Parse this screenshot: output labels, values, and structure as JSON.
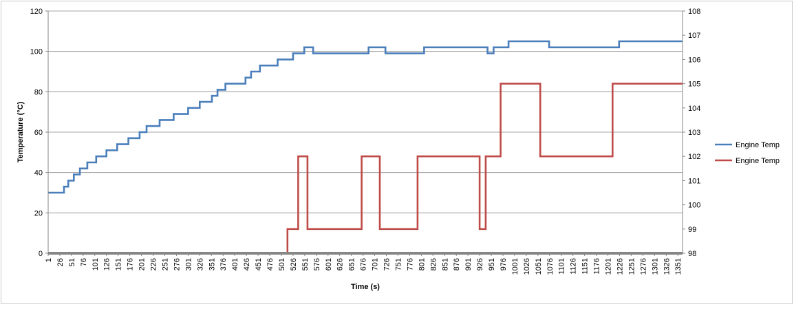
{
  "chart_data": {
    "type": "line",
    "xlabel": "Time (s)",
    "ylabel": "Temperature (°C)",
    "y2label": "",
    "x_ticks": [
      1,
      26,
      51,
      76,
      101,
      126,
      151,
      176,
      201,
      226,
      251,
      276,
      301,
      326,
      351,
      376,
      401,
      426,
      451,
      476,
      501,
      526,
      551,
      576,
      601,
      626,
      651,
      676,
      701,
      726,
      751,
      776,
      801,
      826,
      851,
      876,
      901,
      926,
      951,
      976,
      1001,
      1026,
      1051,
      1076,
      1101,
      1126,
      1151,
      1176,
      1201,
      1226,
      1251,
      1276,
      1301,
      1326,
      1351
    ],
    "xlim": [
      1,
      1361
    ],
    "ylim": [
      0,
      120
    ],
    "yticks": [
      0,
      20,
      40,
      60,
      80,
      100,
      120
    ],
    "y2lim": [
      98,
      108
    ],
    "y2ticks": [
      98,
      99,
      100,
      101,
      102,
      103,
      104,
      105,
      106,
      107,
      108
    ],
    "grid": true,
    "legend_position": "right",
    "series": [
      {
        "name": "Engine Temp",
        "axis": "left",
        "color": "#4a7ebb",
        "points": [
          [
            1,
            30
          ],
          [
            35,
            30
          ],
          [
            35,
            33
          ],
          [
            44,
            33
          ],
          [
            44,
            36
          ],
          [
            56,
            36
          ],
          [
            56,
            39
          ],
          [
            69,
            39
          ],
          [
            69,
            42
          ],
          [
            85,
            42
          ],
          [
            85,
            45
          ],
          [
            104,
            45
          ],
          [
            104,
            48
          ],
          [
            126,
            48
          ],
          [
            126,
            51
          ],
          [
            149,
            51
          ],
          [
            149,
            54
          ],
          [
            173,
            54
          ],
          [
            173,
            57
          ],
          [
            197,
            57
          ],
          [
            197,
            60
          ],
          [
            212,
            60
          ],
          [
            212,
            63
          ],
          [
            240,
            63
          ],
          [
            240,
            66
          ],
          [
            270,
            66
          ],
          [
            270,
            69
          ],
          [
            301,
            69
          ],
          [
            301,
            72
          ],
          [
            326,
            72
          ],
          [
            326,
            75
          ],
          [
            352,
            75
          ],
          [
            352,
            78
          ],
          [
            364,
            78
          ],
          [
            364,
            81
          ],
          [
            381,
            81
          ],
          [
            381,
            84
          ],
          [
            424,
            84
          ],
          [
            424,
            87
          ],
          [
            436,
            87
          ],
          [
            436,
            90
          ],
          [
            455,
            90
          ],
          [
            455,
            93
          ],
          [
            493,
            93
          ],
          [
            493,
            96
          ],
          [
            526,
            96
          ],
          [
            526,
            99
          ],
          [
            550,
            99
          ],
          [
            550,
            102
          ],
          [
            569,
            102
          ],
          [
            569,
            99
          ],
          [
            688,
            99
          ],
          [
            688,
            102
          ],
          [
            724,
            102
          ],
          [
            724,
            99
          ],
          [
            807,
            99
          ],
          [
            807,
            102
          ],
          [
            943,
            102
          ],
          [
            943,
            99
          ],
          [
            956,
            99
          ],
          [
            956,
            102
          ],
          [
            988,
            102
          ],
          [
            988,
            105
          ],
          [
            1075,
            105
          ],
          [
            1075,
            102
          ],
          [
            1225,
            102
          ],
          [
            1225,
            105
          ],
          [
            1361,
            105
          ]
        ]
      },
      {
        "name": "Engine Temp",
        "axis": "right",
        "color": "#be4b48",
        "points": [
          [
            1,
            98
          ],
          [
            514,
            98
          ],
          [
            514,
            99
          ],
          [
            537,
            99
          ],
          [
            537,
            102
          ],
          [
            557,
            102
          ],
          [
            557,
            99
          ],
          [
            673,
            99
          ],
          [
            673,
            102
          ],
          [
            712,
            102
          ],
          [
            712,
            99
          ],
          [
            793,
            99
          ],
          [
            793,
            102
          ],
          [
            926,
            102
          ],
          [
            926,
            99
          ],
          [
            939,
            99
          ],
          [
            939,
            102
          ],
          [
            971,
            102
          ],
          [
            971,
            105
          ],
          [
            1056,
            105
          ],
          [
            1056,
            102
          ],
          [
            1211,
            102
          ],
          [
            1211,
            105
          ],
          [
            1361,
            105
          ]
        ]
      }
    ]
  }
}
